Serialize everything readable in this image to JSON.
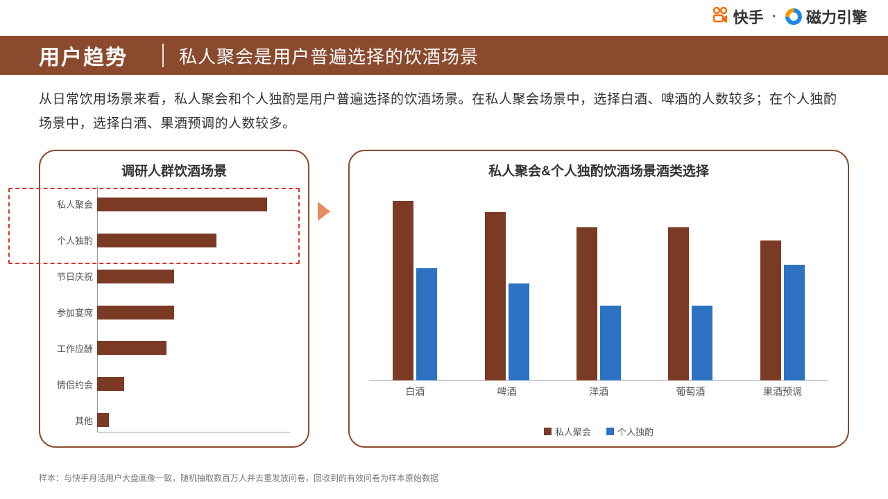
{
  "brand": {
    "kuaishou_text": "快手",
    "separator": "·",
    "engine_text": "磁力引擎",
    "kuaishou_color": "#ff6a00",
    "engine_blue": "#1e88e5",
    "engine_orange": "#ff9800"
  },
  "header": {
    "bg_color": "#8b4a2e",
    "main": "用户趋势",
    "sub": "私人聚会是用户普遍选择的饮酒场景",
    "main_fontsize": 30,
    "sub_fontsize": 26
  },
  "body": {
    "text": "从日常饮用场景来看，私人聚会和个人独酌是用户普遍选择的饮酒场景。在私人聚会场景中，选择白酒、啤酒的人数较多；在个人独酌场景中，选择白酒、果酒预调的人数较多。",
    "fontsize": 19,
    "color": "#333333"
  },
  "panel_border_color": "#8b4a2e",
  "highlight_dash_color": "#d9362a",
  "arrow_color": "#e98b62",
  "left_chart": {
    "type": "bar_horizontal",
    "title": "调研人群饮酒场景",
    "bar_color": "#7a3a24",
    "axis_color": "#999999",
    "label_fontsize": 13,
    "max": 100,
    "categories": [
      "私人聚会",
      "个人独酌",
      "节日庆祝",
      "参加宴席",
      "工作应酬",
      "情侣约会",
      "其他"
    ],
    "values": [
      88,
      62,
      40,
      40,
      36,
      14,
      6
    ],
    "highlight_rows": [
      0,
      1
    ]
  },
  "right_chart": {
    "type": "bar_grouped",
    "title": "私人聚会&个人独酌饮酒场景酒类选择",
    "axis_color": "#999999",
    "label_fontsize": 14,
    "max": 100,
    "categories": [
      "白酒",
      "啤酒",
      "洋酒",
      "葡萄酒",
      "果酒预调"
    ],
    "series": [
      {
        "name": "私人聚会",
        "color": "#7a3a24",
        "values": [
          96,
          90,
          82,
          82,
          75
        ]
      },
      {
        "name": "个人独酌",
        "color": "#2d72c2",
        "values": [
          60,
          52,
          40,
          40,
          62
        ]
      }
    ]
  },
  "footnote": "样本：与快手月活用户大盘画像一致，随机抽取数百万人并去重发放问卷，回收到的有效问卷为样本原始数据"
}
